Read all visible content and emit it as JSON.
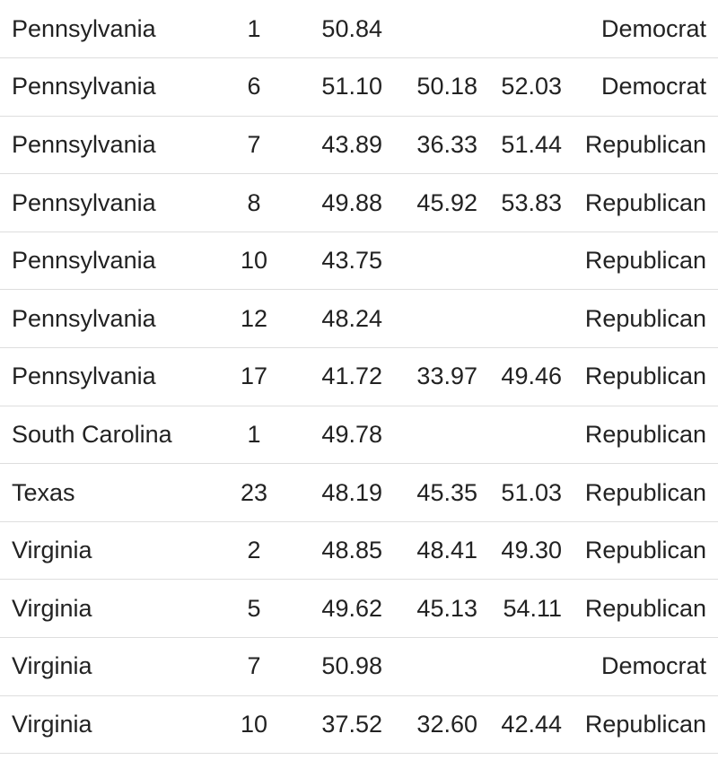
{
  "table": {
    "rows": [
      {
        "state": "Pennsylvania",
        "district": "1",
        "value": "50.84",
        "lower": "",
        "upper": "",
        "party": "Democrat"
      },
      {
        "state": "Pennsylvania",
        "district": "6",
        "value": "51.10",
        "lower": "50.18",
        "upper": "52.03",
        "party": "Democrat"
      },
      {
        "state": "Pennsylvania",
        "district": "7",
        "value": "43.89",
        "lower": "36.33",
        "upper": "51.44",
        "party": "Republican"
      },
      {
        "state": "Pennsylvania",
        "district": "8",
        "value": "49.88",
        "lower": "45.92",
        "upper": "53.83",
        "party": "Republican"
      },
      {
        "state": "Pennsylvania",
        "district": "10",
        "value": "43.75",
        "lower": "",
        "upper": "",
        "party": "Republican"
      },
      {
        "state": "Pennsylvania",
        "district": "12",
        "value": "48.24",
        "lower": "",
        "upper": "",
        "party": "Republican"
      },
      {
        "state": "Pennsylvania",
        "district": "17",
        "value": "41.72",
        "lower": "33.97",
        "upper": "49.46",
        "party": "Republican"
      },
      {
        "state": "South Carolina",
        "district": "1",
        "value": "49.78",
        "lower": "",
        "upper": "",
        "party": "Republican"
      },
      {
        "state": "Texas",
        "district": "23",
        "value": "48.19",
        "lower": "45.35",
        "upper": "51.03",
        "party": "Republican"
      },
      {
        "state": "Virginia",
        "district": "2",
        "value": "48.85",
        "lower": "48.41",
        "upper": "49.30",
        "party": "Republican"
      },
      {
        "state": "Virginia",
        "district": "5",
        "value": "49.62",
        "lower": "45.13",
        "upper": "54.11",
        "party": "Republican"
      },
      {
        "state": "Virginia",
        "district": "7",
        "value": "50.98",
        "lower": "",
        "upper": "",
        "party": "Democrat"
      },
      {
        "state": "Virginia",
        "district": "10",
        "value": "37.52",
        "lower": "32.60",
        "upper": "42.44",
        "party": "Republican"
      }
    ]
  }
}
